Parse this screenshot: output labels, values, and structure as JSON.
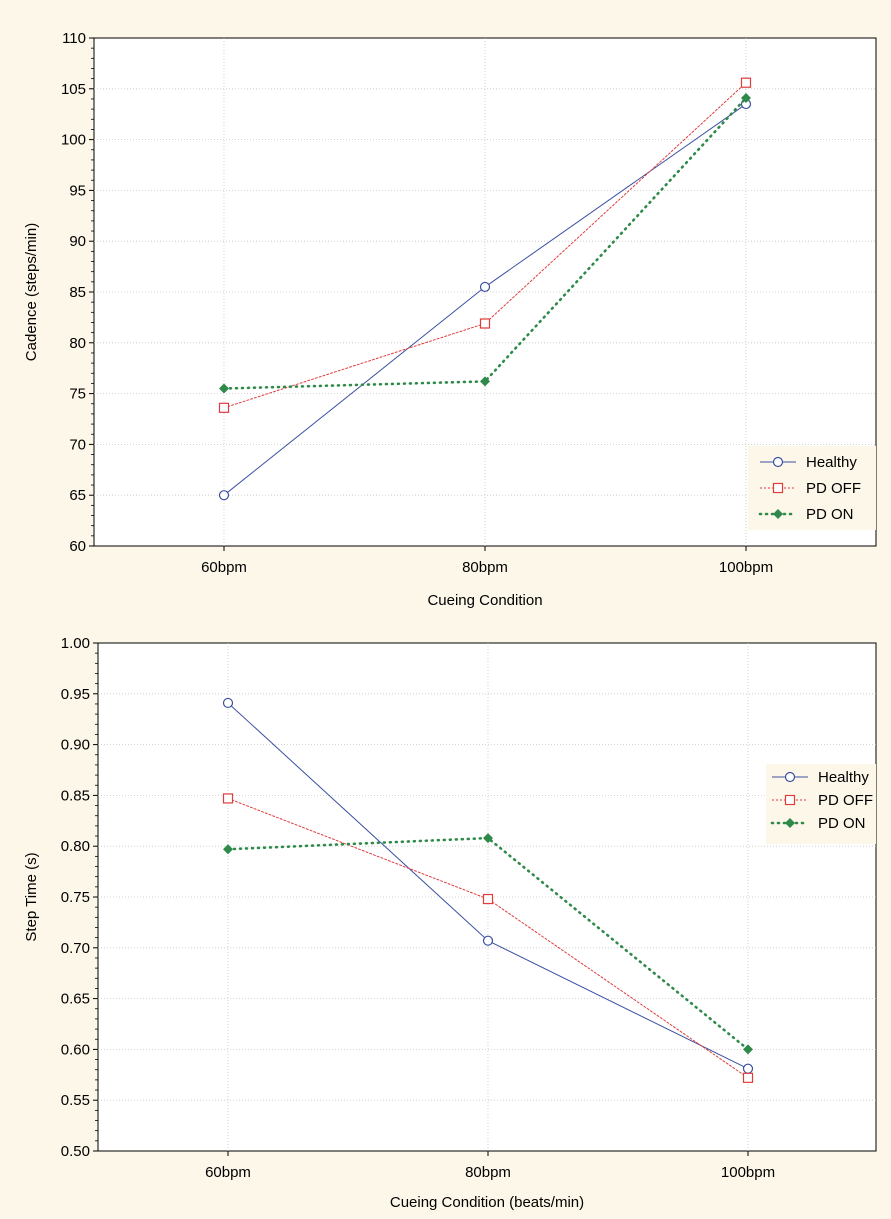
{
  "chart_data": [
    {
      "type": "line",
      "title": "",
      "xlabel": "Cueing Condition",
      "ylabel": "Cadence (steps/min)",
      "categories": [
        "60bpm",
        "80bpm",
        "100bpm"
      ],
      "ylim": [
        60,
        110
      ],
      "yticks": [
        "60",
        "65",
        "70",
        "75",
        "80",
        "85",
        "90",
        "95",
        "100",
        "105",
        "110"
      ],
      "grid": true,
      "legend_position": "bottom-right",
      "series": [
        {
          "name": "Healthy",
          "values": [
            65.0,
            85.5,
            103.5
          ],
          "color": "#3a4fa0",
          "marker": "circle-open",
          "line": "solid"
        },
        {
          "name": "PD OFF",
          "values": [
            73.6,
            81.9,
            105.6
          ],
          "color": "#e03c3c",
          "marker": "square-open",
          "line": "dotted-thin"
        },
        {
          "name": "PD ON",
          "values": [
            75.5,
            76.2,
            104.1
          ],
          "color": "#2f8a4a",
          "marker": "diamond-filled",
          "line": "dotted-thick"
        }
      ]
    },
    {
      "type": "line",
      "title": "",
      "xlabel": "Cueing Condition (beats/min)",
      "ylabel": "Step Time (s)",
      "categories": [
        "60bpm",
        "80bpm",
        "100bpm"
      ],
      "ylim": [
        0.5,
        1.0
      ],
      "yticks": [
        "0.50",
        "0.55",
        "0.60",
        "0.65",
        "0.70",
        "0.75",
        "0.80",
        "0.85",
        "0.90",
        "0.95",
        "1.00"
      ],
      "grid": true,
      "legend_position": "bottom-right",
      "series": [
        {
          "name": "Healthy",
          "values": [
            0.941,
            0.707,
            0.581
          ],
          "color": "#3a4fa0",
          "marker": "circle-open",
          "line": "solid"
        },
        {
          "name": "PD OFF",
          "values": [
            0.847,
            0.748,
            0.572
          ],
          "color": "#e03c3c",
          "marker": "square-open",
          "line": "dotted-thin"
        },
        {
          "name": "PD ON",
          "values": [
            0.797,
            0.808,
            0.6
          ],
          "color": "#2f8a4a",
          "marker": "diamond-filled",
          "line": "dotted-thick"
        }
      ]
    }
  ],
  "colors": {
    "background": "#fdf7e9",
    "grid": "#c8c8c8"
  }
}
